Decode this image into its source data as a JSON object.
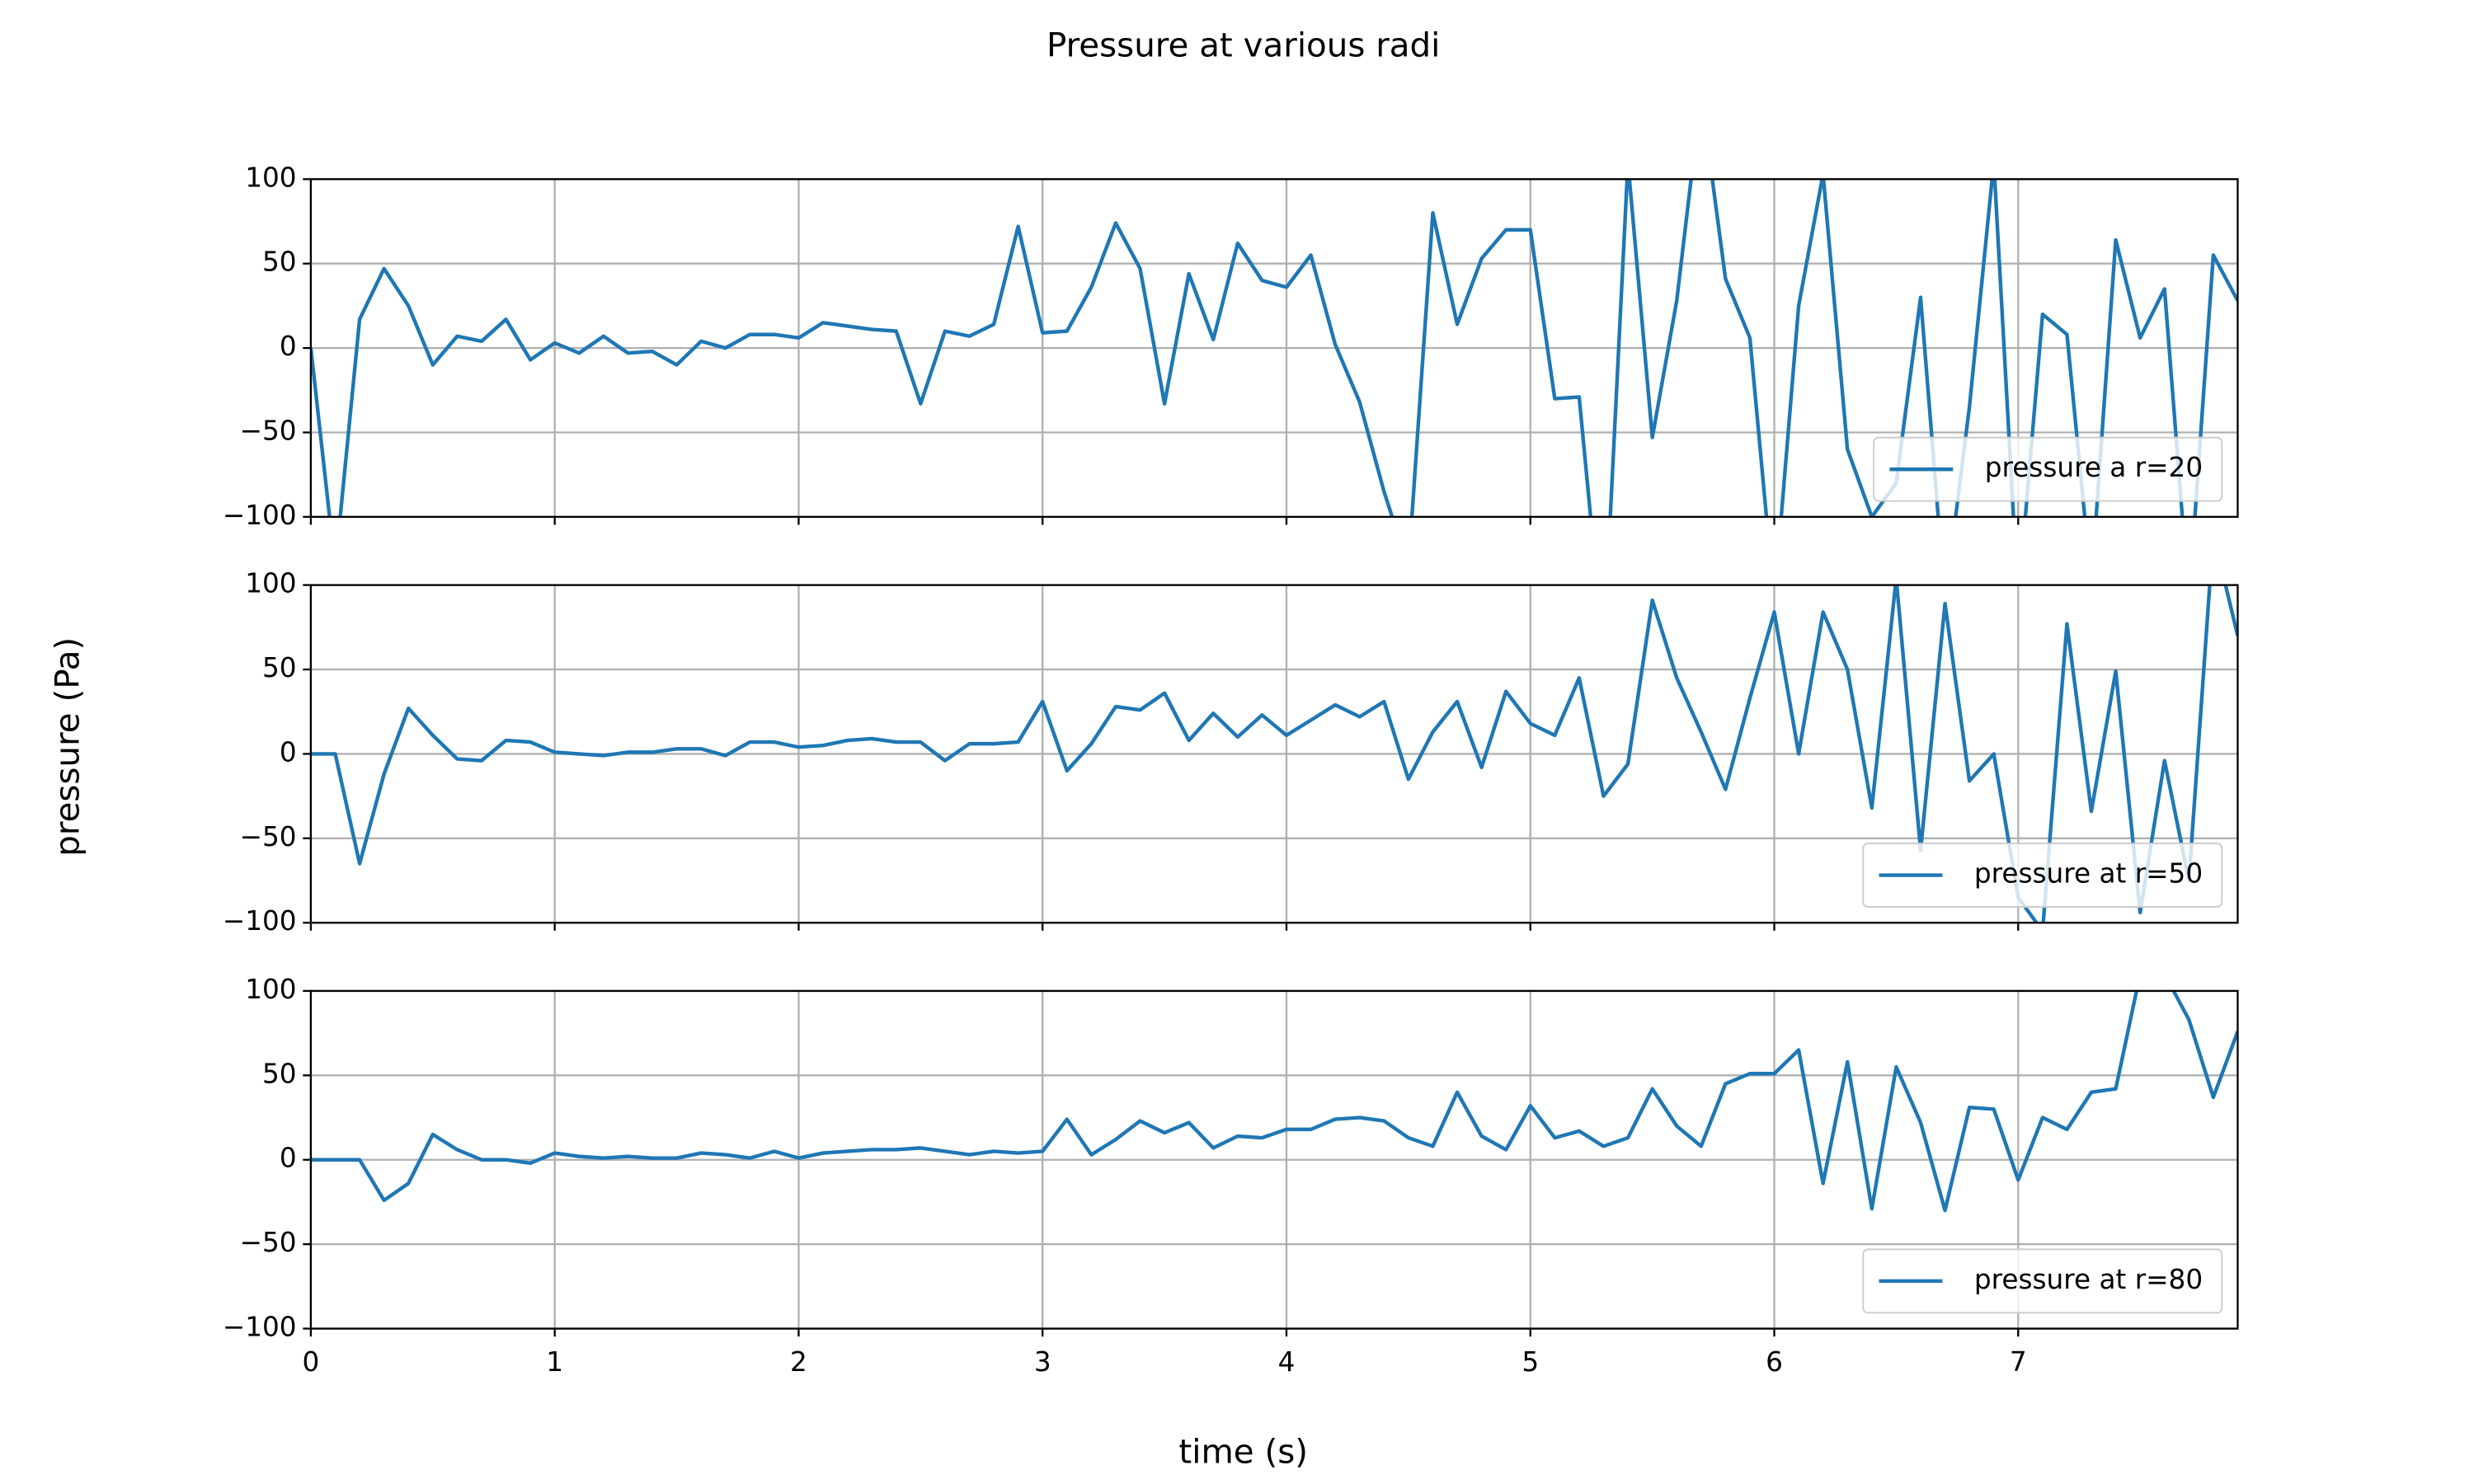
{
  "title": "Pressure at various radi",
  "xlabel": "time (s)",
  "ylabel": "pressure (Pa)",
  "chart_data": [
    {
      "type": "line",
      "legend": "lower right",
      "grid": true,
      "x": [
        0,
        0.1,
        0.2,
        0.3,
        0.4,
        0.5,
        0.6,
        0.7,
        0.8,
        0.9,
        1,
        1.1,
        1.2,
        1.3,
        1.4,
        1.5,
        1.6,
        1.7,
        1.8,
        1.9,
        2,
        2.1,
        2.2,
        2.3,
        2.4,
        2.5,
        2.6,
        2.7,
        2.8,
        2.9,
        3,
        3.1,
        3.2,
        3.3,
        3.4,
        3.5,
        3.6,
        3.7,
        3.8,
        3.9,
        4,
        4.1,
        4.2,
        4.3,
        4.4,
        4.5,
        4.6,
        4.7,
        4.8,
        4.9,
        5,
        5.1,
        5.2,
        5.3,
        5.4,
        5.5,
        5.6,
        5.7,
        5.8,
        5.9,
        6,
        6.1,
        6.2,
        6.3,
        6.4,
        6.5,
        6.6,
        6.7,
        6.8,
        6.9,
        7,
        7.1,
        7.2,
        7.3,
        7.4,
        7.5,
        7.6,
        7.7,
        7.8,
        7.9
      ],
      "series": [
        {
          "name": "pressure a r=20",
          "color": "#1f77b4",
          "values": [
            0,
            -130,
            17,
            47,
            25,
            -10,
            7,
            4,
            17,
            -7,
            3,
            -3,
            7,
            -3,
            -2,
            -10,
            4,
            0,
            8,
            8,
            6,
            15,
            13,
            11,
            10,
            -33,
            10,
            7,
            14,
            72,
            9,
            10,
            36,
            74,
            47,
            -33,
            44,
            5,
            62,
            40,
            36,
            55,
            2,
            -32,
            -85,
            -130,
            80,
            14,
            53,
            70,
            70,
            -30,
            -29,
            -180,
            110,
            -53,
            28,
            150,
            41,
            6,
            -150,
            25,
            103,
            -60,
            -100,
            -80,
            30,
            -150,
            -35,
            110,
            -150,
            20,
            8,
            -140,
            64,
            6,
            35,
            -150,
            55,
            28
          ]
        }
      ],
      "xlim": [
        0,
        7.9
      ],
      "xticks": [
        0,
        1,
        2,
        3,
        4,
        5,
        6,
        7
      ],
      "ylim": [
        -100,
        100
      ],
      "yticks": [
        {
          "value": -100,
          "label": "−100"
        },
        {
          "value": -50,
          "label": "−50"
        },
        0,
        50,
        100
      ]
    },
    {
      "type": "line",
      "legend": "lower right",
      "grid": true,
      "x": [
        0,
        0.1,
        0.2,
        0.3,
        0.4,
        0.5,
        0.6,
        0.7,
        0.8,
        0.9,
        1,
        1.1,
        1.2,
        1.3,
        1.4,
        1.5,
        1.6,
        1.7,
        1.8,
        1.9,
        2,
        2.1,
        2.2,
        2.3,
        2.4,
        2.5,
        2.6,
        2.7,
        2.8,
        2.9,
        3,
        3.1,
        3.2,
        3.3,
        3.4,
        3.5,
        3.6,
        3.7,
        3.8,
        3.9,
        4,
        4.1,
        4.2,
        4.3,
        4.4,
        4.5,
        4.6,
        4.7,
        4.8,
        4.9,
        5,
        5.1,
        5.2,
        5.3,
        5.4,
        5.5,
        5.6,
        5.7,
        5.8,
        5.9,
        6,
        6.1,
        6.2,
        6.3,
        6.4,
        6.5,
        6.6,
        6.7,
        6.8,
        6.9,
        7,
        7.1,
        7.2,
        7.3,
        7.4,
        7.5,
        7.6,
        7.7,
        7.8,
        7.9
      ],
      "series": [
        {
          "name": "pressure at r=50",
          "color": "#1f77b4",
          "values": [
            0,
            0,
            -65,
            -12,
            27,
            11,
            -3,
            -4,
            8,
            7,
            1,
            0,
            -1,
            1,
            1,
            3,
            3,
            -1,
            7,
            7,
            4,
            5,
            8,
            9,
            7,
            7,
            -4,
            6,
            6,
            7,
            31,
            -10,
            6,
            28,
            26,
            36,
            8,
            24,
            10,
            23,
            11,
            20,
            29,
            22,
            31,
            -15,
            13,
            31,
            -8,
            37,
            18,
            11,
            45,
            -25,
            -6,
            91,
            45,
            13,
            -21,
            33,
            84,
            0,
            84,
            50,
            -32,
            104,
            -57,
            89,
            -16,
            0,
            -85,
            -105,
            77,
            -34,
            49,
            -94,
            -4,
            -75,
            130,
            70
          ]
        }
      ],
      "xlim": [
        0,
        7.9
      ],
      "xticks": [
        0,
        1,
        2,
        3,
        4,
        5,
        6,
        7
      ],
      "ylim": [
        -100,
        100
      ],
      "yticks": [
        {
          "value": -100,
          "label": "−100"
        },
        {
          "value": -50,
          "label": "−50"
        },
        0,
        50,
        100
      ]
    },
    {
      "type": "line",
      "legend": "lower right",
      "grid": true,
      "x": [
        0,
        0.1,
        0.2,
        0.3,
        0.4,
        0.5,
        0.6,
        0.7,
        0.8,
        0.9,
        1,
        1.1,
        1.2,
        1.3,
        1.4,
        1.5,
        1.6,
        1.7,
        1.8,
        1.9,
        2,
        2.1,
        2.2,
        2.3,
        2.4,
        2.5,
        2.6,
        2.7,
        2.8,
        2.9,
        3,
        3.1,
        3.2,
        3.3,
        3.4,
        3.5,
        3.6,
        3.7,
        3.8,
        3.9,
        4,
        4.1,
        4.2,
        4.3,
        4.4,
        4.5,
        4.6,
        4.7,
        4.8,
        4.9,
        5,
        5.1,
        5.2,
        5.3,
        5.4,
        5.5,
        5.6,
        5.7,
        5.8,
        5.9,
        6,
        6.1,
        6.2,
        6.3,
        6.4,
        6.5,
        6.6,
        6.7,
        6.8,
        6.9,
        7,
        7.1,
        7.2,
        7.3,
        7.4,
        7.5,
        7.6,
        7.7,
        7.8,
        7.9
      ],
      "series": [
        {
          "name": "pressure at r=80",
          "color": "#1f77b4",
          "values": [
            0,
            0,
            0,
            -24,
            -14,
            15,
            6,
            0,
            0,
            -2,
            4,
            2,
            1,
            2,
            1,
            1,
            4,
            3,
            1,
            5,
            1,
            4,
            5,
            6,
            6,
            7,
            5,
            3,
            5,
            4,
            5,
            24,
            3,
            12,
            23,
            16,
            22,
            7,
            14,
            13,
            18,
            18,
            24,
            25,
            23,
            13,
            8,
            40,
            14,
            6,
            32,
            13,
            17,
            8,
            13,
            42,
            20,
            8,
            45,
            51,
            51,
            65,
            -14,
            58,
            -29,
            55,
            22,
            -30,
            31,
            30,
            -12,
            25,
            18,
            40,
            42,
            110,
            110,
            83,
            37,
            76
          ]
        }
      ],
      "xlim": [
        0,
        7.9
      ],
      "xticks": [
        0,
        1,
        2,
        3,
        4,
        5,
        6,
        7
      ],
      "xticklabels": true,
      "ylim": [
        -100,
        100
      ],
      "yticks": [
        {
          "value": -100,
          "label": "−100"
        },
        {
          "value": -50,
          "label": "−50"
        },
        0,
        50,
        100
      ]
    }
  ]
}
